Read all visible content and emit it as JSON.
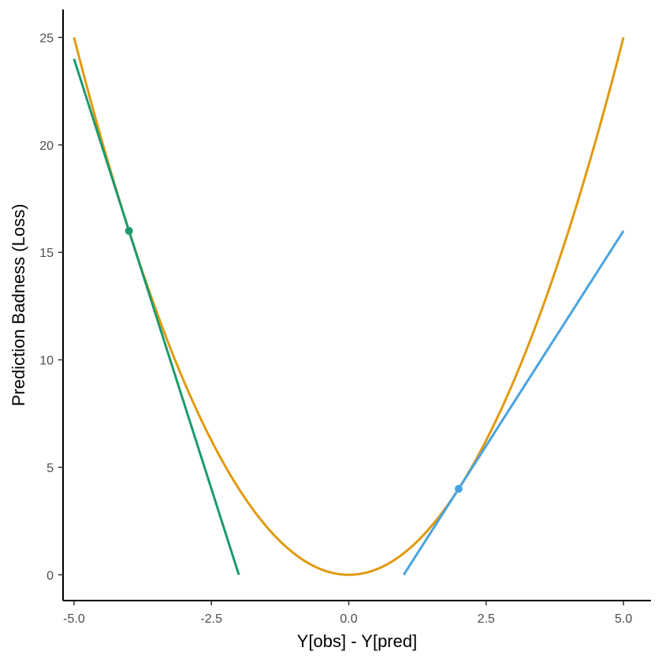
{
  "chart_data": {
    "type": "line",
    "title": "",
    "xlabel": "Y[obs] - Y[pred]",
    "ylabel": "Prediction Badness (Loss)",
    "xlim": [
      -5.2,
      5.5
    ],
    "ylim": [
      -1.2,
      26.3
    ],
    "x_ticks": [
      -5.0,
      -2.5,
      0.0,
      2.5,
      5.0
    ],
    "x_tick_labels": [
      "-5.0",
      "-2.5",
      "0.0",
      "2.5",
      "5.0"
    ],
    "y_ticks": [
      0,
      5,
      10,
      15,
      20,
      25
    ],
    "y_tick_labels": [
      "0",
      "5",
      "10",
      "15",
      "20",
      "25"
    ],
    "grid": false,
    "series": [
      {
        "kind": "curve",
        "formula": "y = x^2",
        "x_range": [
          -5,
          5
        ],
        "color": "#E09A0F"
      },
      {
        "kind": "tangent-line",
        "x": [
          -5,
          -2
        ],
        "y": [
          24,
          0
        ],
        "color": "#1A9A6E"
      },
      {
        "kind": "tangent-line",
        "x": [
          1,
          5
        ],
        "y": [
          0,
          16
        ],
        "color": "#4AA3DF"
      }
    ],
    "points": [
      {
        "x": -4,
        "y": 16,
        "color": "#1A9A6E"
      },
      {
        "x": 2,
        "y": 4,
        "color": "#4AA3DF"
      }
    ]
  }
}
